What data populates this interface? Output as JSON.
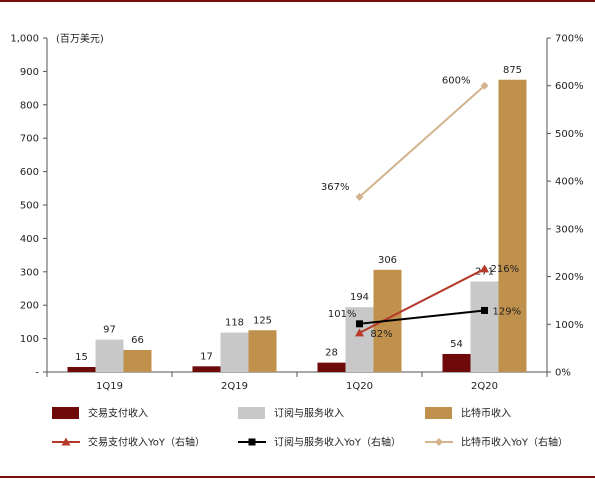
{
  "chart_data": {
    "type": "bar",
    "unit_label": "(百万美元)",
    "categories": [
      "1Q19",
      "2Q19",
      "1Q20",
      "2Q20"
    ],
    "y_left": {
      "min": 0,
      "max": 1000,
      "step": 100,
      "ticks": [
        "-",
        "100",
        "200",
        "300",
        "400",
        "500",
        "600",
        "700",
        "800",
        "900",
        "1,000"
      ]
    },
    "y_right": {
      "min": 0,
      "max": 700,
      "step": 100,
      "ticks": [
        "0%",
        "100%",
        "200%",
        "300%",
        "400%",
        "500%",
        "600%",
        "700%"
      ]
    },
    "bar_series": [
      {
        "name": "交易支付收入",
        "color": "#6e0a0a",
        "values": [
          15,
          17,
          28,
          54
        ]
      },
      {
        "name": "订阅与服务收入",
        "color": "#c8c8c8",
        "values": [
          97,
          118,
          194,
          271
        ]
      },
      {
        "name": "比特币收入",
        "color": "#c0914c",
        "values": [
          66,
          125,
          306,
          875
        ]
      }
    ],
    "line_series": [
      {
        "name": "交易支付收入YoY（右轴）",
        "color": "#b53a2a",
        "marker": "triangle",
        "points": [
          {
            "category": "1Q20",
            "value": 82,
            "label": "82%"
          },
          {
            "category": "2Q20",
            "value": 216,
            "label": "216%"
          }
        ]
      },
      {
        "name": "订阅与服务收入YoY（右轴）",
        "color": "#000000",
        "marker": "square",
        "points": [
          {
            "category": "1Q20",
            "value": 101,
            "label": "101%"
          },
          {
            "category": "2Q20",
            "value": 129,
            "label": "129%"
          }
        ]
      },
      {
        "name": "比特币收入YoY（右轴）",
        "color": "#d3b48e",
        "marker": "diamond",
        "points": [
          {
            "category": "1Q20",
            "value": 367,
            "label": "367%"
          },
          {
            "category": "2Q20",
            "value": 600,
            "label": "600%"
          }
        ]
      }
    ],
    "legend_position": "bottom",
    "grid": false
  }
}
